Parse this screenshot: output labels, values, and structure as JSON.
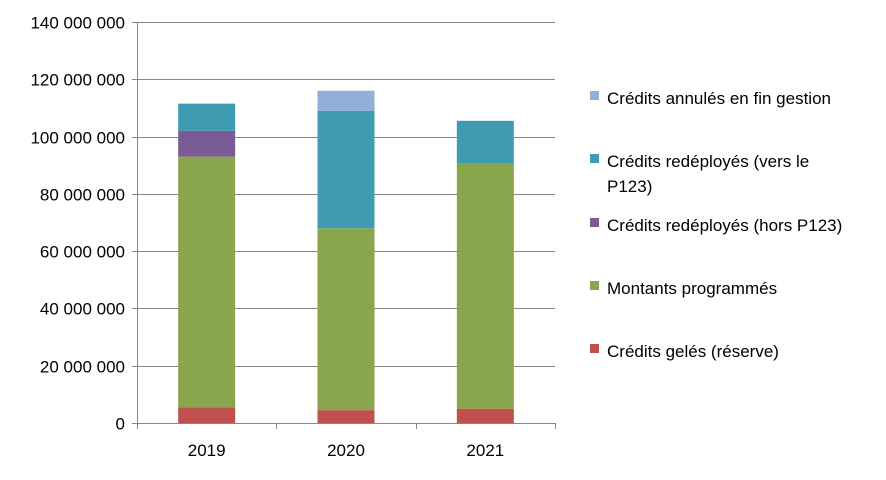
{
  "chart_data": {
    "type": "bar",
    "stacked": true,
    "categories": [
      "2019",
      "2020",
      "2021"
    ],
    "series": [
      {
        "name": "Crédits gelés (réserve)",
        "color": "#C0504D",
        "values": [
          5500000,
          4500000,
          5000000
        ]
      },
      {
        "name": "Montants programmés",
        "color": "#8AA64C",
        "values": [
          87500000,
          63500000,
          85500000
        ]
      },
      {
        "name": "Crédits redéployés (hors P123)",
        "color": "#7A5B96",
        "values": [
          9000000,
          0,
          0
        ]
      },
      {
        "name": "Crédits redéployés (vers le P123)",
        "color": "#3F9BB1",
        "values": [
          9500000,
          41000000,
          15000000
        ]
      },
      {
        "name": "Crédits annulés en fin gestion",
        "color": "#93AED8",
        "values": [
          0,
          7000000,
          0
        ]
      }
    ],
    "legend_order": [
      4,
      3,
      2,
      1,
      0
    ],
    "ylim": [
      0,
      140000000
    ],
    "yticks": [
      {
        "value": 0,
        "label": "0"
      },
      {
        "value": 20000000,
        "label": "20 000 000"
      },
      {
        "value": 40000000,
        "label": "40 000 000"
      },
      {
        "value": 60000000,
        "label": "60 000 000"
      },
      {
        "value": 80000000,
        "label": "80 000 000"
      },
      {
        "value": 100000000,
        "label": "100 000 000"
      },
      {
        "value": 120000000,
        "label": "120 000 000"
      },
      {
        "value": 140000000,
        "label": "140 000 000"
      }
    ],
    "title": "",
    "xlabel": "",
    "ylabel": "",
    "grid": true,
    "legend_position": "right"
  }
}
